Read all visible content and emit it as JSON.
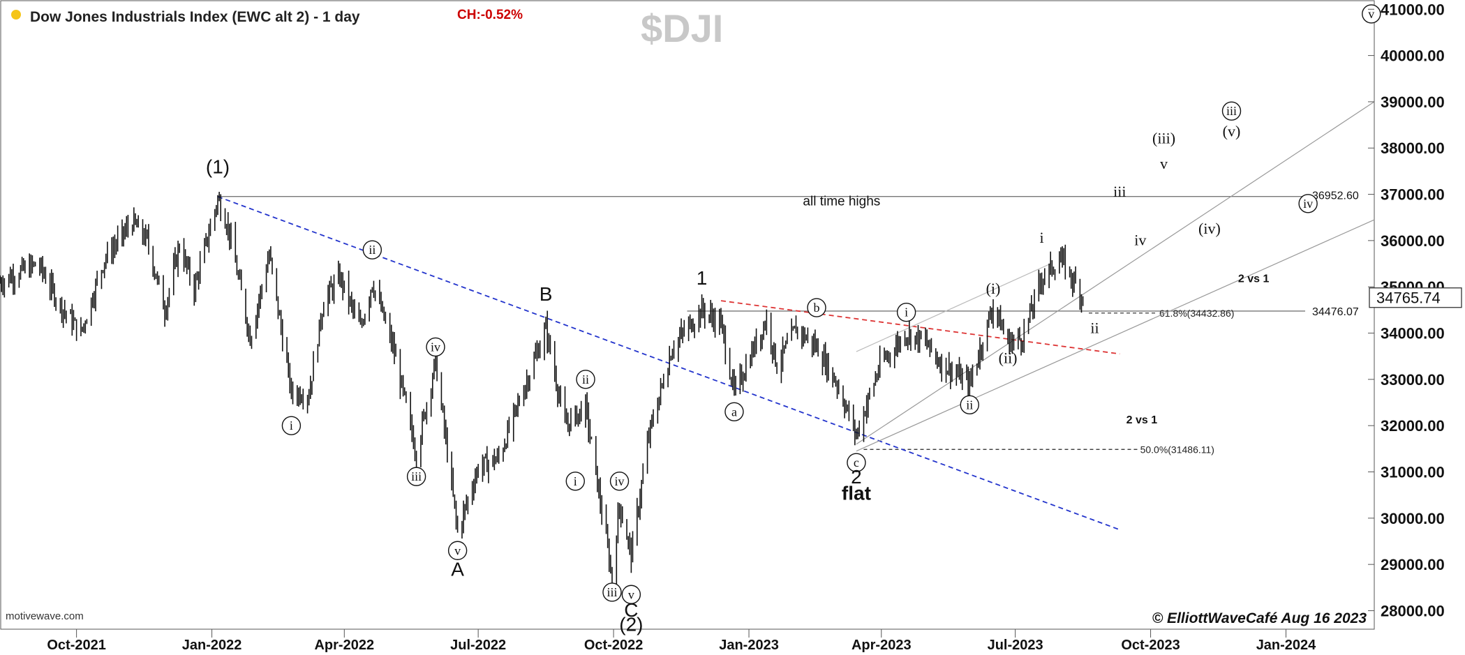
{
  "header": {
    "title": "Dow Jones Industrials Index (EWC alt 2) - 1 day",
    "change": "CH:-0.52%",
    "symbol": "$DJI",
    "status_dot_color": "#f5c518",
    "change_color": "#cc0000",
    "symbol_color": "#c8c8c8"
  },
  "footer": {
    "source": "motivewave.com",
    "copyright": "© ElliottWaveCafé Aug 16 2023"
  },
  "chart_data": {
    "type": "ohlc",
    "x_axis": {
      "ticks": [
        "Oct-2021",
        "Jan-2022",
        "Apr-2022",
        "Jul-2022",
        "Oct-2022",
        "Jan-2023",
        "Apr-2023",
        "Jul-2023",
        "Oct-2023",
        "Jan-2024"
      ],
      "range": [
        "2021-08-10",
        "2024-03-01"
      ]
    },
    "y_axis": {
      "ticks": [
        "28000.00",
        "29000.00",
        "30000.00",
        "31000.00",
        "32000.00",
        "33000.00",
        "34000.00",
        "35000.00",
        "36000.00",
        "37000.00",
        "38000.00",
        "39000.00",
        "40000.00",
        "41000.00"
      ],
      "range": [
        27600,
        41200
      ],
      "position": "right"
    },
    "last_price": "34765.74",
    "price_path": [
      [
        "2021-08-10",
        35100
      ],
      [
        "2021-08-25",
        35350
      ],
      [
        "2021-09-05",
        35500
      ],
      [
        "2021-09-20",
        34600
      ],
      [
        "2021-10-04",
        34000
      ],
      [
        "2021-10-20",
        35600
      ],
      [
        "2021-11-08",
        36400
      ],
      [
        "2021-11-18",
        36000
      ],
      [
        "2021-11-30",
        34500
      ],
      [
        "2021-12-10",
        35900
      ],
      [
        "2021-12-20",
        34950
      ],
      [
        "2022-01-05",
        36900
      ],
      [
        "2022-01-12",
        36300
      ],
      [
        "2022-01-27",
        33900
      ],
      [
        "2022-02-09",
        35700
      ],
      [
        "2022-02-24",
        32700
      ],
      [
        "2022-03-08",
        32700
      ],
      [
        "2022-03-18",
        34700
      ],
      [
        "2022-03-29",
        35200
      ],
      [
        "2022-04-12",
        34100
      ],
      [
        "2022-04-20",
        35100
      ],
      [
        "2022-05-04",
        33700
      ],
      [
        "2022-05-20",
        31400
      ],
      [
        "2022-06-02",
        33400
      ],
      [
        "2022-06-17",
        29700
      ],
      [
        "2022-07-01",
        31100
      ],
      [
        "2022-07-15",
        31300
      ],
      [
        "2022-08-01",
        32800
      ],
      [
        "2022-08-16",
        34100
      ],
      [
        "2022-08-29",
        32000
      ],
      [
        "2022-09-12",
        32400
      ],
      [
        "2022-09-30",
        28700
      ],
      [
        "2022-10-05",
        30300
      ],
      [
        "2022-10-13",
        29200
      ],
      [
        "2022-10-25",
        31800
      ],
      [
        "2022-11-10",
        33700
      ],
      [
        "2022-11-30",
        34500
      ],
      [
        "2022-12-13",
        34200
      ],
      [
        "2022-12-22",
        32700
      ],
      [
        "2023-01-13",
        34300
      ],
      [
        "2023-01-20",
        33300
      ],
      [
        "2023-02-02",
        34100
      ],
      [
        "2023-02-16",
        33700
      ],
      [
        "2023-03-02",
        32900
      ],
      [
        "2023-03-15",
        31800
      ],
      [
        "2023-03-31",
        33300
      ],
      [
        "2023-04-18",
        34000
      ],
      [
        "2023-05-01",
        33800
      ],
      [
        "2023-05-10",
        33400
      ],
      [
        "2023-05-31",
        32900
      ],
      [
        "2023-06-16",
        34600
      ],
      [
        "2023-06-26",
        33800
      ],
      [
        "2023-07-06",
        33900
      ],
      [
        "2023-07-19",
        35200
      ],
      [
        "2023-08-01",
        35600
      ],
      [
        "2023-08-16",
        34765
      ]
    ],
    "levels": [
      {
        "label": "all time highs",
        "value": 36952.6,
        "value_label": "36952.60",
        "style": "solid"
      },
      {
        "value": 34476.07,
        "value_label": "34476.07",
        "style": "solid"
      },
      {
        "fib": "61.8%(34432.86)",
        "value": 34432.86,
        "style": "dashed"
      },
      {
        "fib": "50.0%(31486.11)",
        "value": 31486.11,
        "style": "dashed"
      }
    ],
    "trendlines": [
      {
        "color": "#2233cc",
        "style": "dashed",
        "from": [
          "2022-01-05",
          36950
        ],
        "to": [
          "2023-09-10",
          29750
        ]
      },
      {
        "color": "#dd3333",
        "style": "dashed",
        "from": [
          "2022-12-13",
          34700
        ],
        "to": [
          "2023-09-10",
          33550
        ]
      },
      {
        "color": "#999999",
        "style": "solid",
        "from": [
          "2023-03-15",
          31600
        ],
        "to": [
          "2024-03-01",
          39000
        ]
      },
      {
        "color": "#999999",
        "style": "solid",
        "from": [
          "2023-03-15",
          31450
        ],
        "to": [
          "2024-03-01",
          36450
        ]
      },
      {
        "color": "#bbbbbb",
        "style": "solid",
        "from": [
          "2023-03-15",
          33600
        ],
        "to": [
          "2023-07-25",
          35500
        ]
      }
    ],
    "wave_labels": [
      {
        "text": "(1)",
        "date": "2022-01-05",
        "price": 37450,
        "kind": "plain"
      },
      {
        "text": "ii",
        "date": "2022-04-20",
        "price": 35800,
        "kind": "circled"
      },
      {
        "text": "i",
        "date": "2022-02-24",
        "price": 32000,
        "kind": "circled"
      },
      {
        "text": "iv",
        "date": "2022-06-02",
        "price": 33700,
        "kind": "circled"
      },
      {
        "text": "iii",
        "date": "2022-05-20",
        "price": 30900,
        "kind": "circled"
      },
      {
        "text": "v",
        "date": "2022-06-17",
        "price": 29300,
        "kind": "circled"
      },
      {
        "text": "A",
        "date": "2022-06-17",
        "price": 28750,
        "kind": "plain"
      },
      {
        "text": "B",
        "date": "2022-08-16",
        "price": 34700,
        "kind": "plain"
      },
      {
        "text": "ii",
        "date": "2022-09-12",
        "price": 33000,
        "kind": "circled"
      },
      {
        "text": "i",
        "date": "2022-09-05",
        "price": 30800,
        "kind": "circled"
      },
      {
        "text": "iv",
        "date": "2022-10-05",
        "price": 30800,
        "kind": "circled"
      },
      {
        "text": "iii",
        "date": "2022-09-30",
        "price": 28400,
        "kind": "circled"
      },
      {
        "text": "v",
        "date": "2022-10-13",
        "price": 28350,
        "kind": "circled"
      },
      {
        "text": "C",
        "date": "2022-10-13",
        "price": 27870,
        "kind": "plain"
      },
      {
        "text": "(2)",
        "date": "2022-10-13",
        "price": 27560,
        "kind": "plain"
      },
      {
        "text": "1",
        "date": "2022-11-30",
        "price": 35050,
        "kind": "plain"
      },
      {
        "text": "a",
        "date": "2022-12-22",
        "price": 32300,
        "kind": "circled"
      },
      {
        "text": "b",
        "date": "2023-02-16",
        "price": 34550,
        "kind": "circled"
      },
      {
        "text": "c",
        "date": "2023-03-15",
        "price": 31200,
        "kind": "circled"
      },
      {
        "text": "2",
        "date": "2023-03-15",
        "price": 30750,
        "kind": "plain"
      },
      {
        "text": "flat",
        "date": "2023-03-15",
        "price": 30400,
        "kind": "bold"
      },
      {
        "text": "i",
        "date": "2023-04-18",
        "price": 34450,
        "kind": "circled"
      },
      {
        "text": "ii",
        "date": "2023-05-31",
        "price": 32450,
        "kind": "circled"
      },
      {
        "text": "(i)",
        "date": "2023-06-16",
        "price": 34850,
        "kind": "wave"
      },
      {
        "text": "(ii)",
        "date": "2023-06-26",
        "price": 33350,
        "kind": "wave"
      },
      {
        "text": "i",
        "date": "2023-07-19",
        "price": 35950,
        "kind": "wave"
      },
      {
        "text": "ii",
        "date": "2023-08-24",
        "price": 34000,
        "kind": "wave"
      },
      {
        "text": "iii",
        "date": "2023-09-10",
        "price": 36950,
        "kind": "wave"
      },
      {
        "text": "iv",
        "date": "2023-09-24",
        "price": 35900,
        "kind": "wave"
      },
      {
        "text": "v",
        "date": "2023-10-10",
        "price": 37550,
        "kind": "wave"
      },
      {
        "text": "(iii)",
        "date": "2023-10-10",
        "price": 38100,
        "kind": "wave"
      },
      {
        "text": "(iv)",
        "date": "2023-11-10",
        "price": 36150,
        "kind": "wave"
      },
      {
        "text": "(v)",
        "date": "2023-11-25",
        "price": 38250,
        "kind": "wave"
      },
      {
        "text": "iii",
        "date": "2023-11-25",
        "price": 38800,
        "kind": "circled"
      },
      {
        "text": "iv",
        "date": "2024-01-16",
        "price": 36800,
        "kind": "circled"
      },
      {
        "text": "v",
        "date": "2024-02-28",
        "price": 40900,
        "kind": "circled"
      }
    ],
    "annotations": [
      {
        "text": "2 vs 1",
        "date": "2023-12-10",
        "price": 35100
      },
      {
        "text": "2 vs 1",
        "date": "2023-09-25",
        "price": 32050
      }
    ]
  }
}
